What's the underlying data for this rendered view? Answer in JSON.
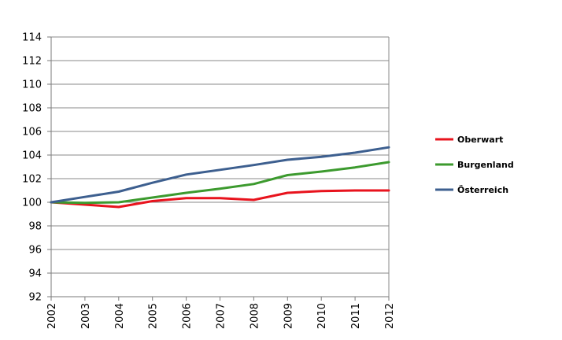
{
  "chart_data": {
    "type": "line",
    "x": [
      "2002",
      "2003",
      "2004",
      "2005",
      "2006",
      "2007",
      "2008",
      "2009",
      "2010",
      "2011",
      "2012"
    ],
    "series": [
      {
        "name": "Oberwart",
        "color": "#e8131d",
        "values": [
          100,
          99.8,
          99.6,
          100.1,
          100.35,
          100.35,
          100.2,
          100.8,
          100.95,
          101.0,
          101.0
        ]
      },
      {
        "name": "Burgenland",
        "color": "#3c9a2e",
        "values": [
          100,
          99.95,
          100.0,
          100.4,
          100.8,
          101.15,
          101.55,
          102.3,
          102.6,
          102.95,
          103.4
        ]
      },
      {
        "name": "Österreich",
        "color": "#3d5f8f",
        "values": [
          100,
          100.45,
          100.9,
          101.65,
          102.35,
          102.75,
          103.15,
          103.6,
          103.85,
          104.2,
          104.65
        ]
      }
    ],
    "yticks": [
      "92",
      "94",
      "96",
      "98",
      "100",
      "102",
      "104",
      "106",
      "108",
      "110",
      "112",
      "114"
    ],
    "ylim": [
      92,
      114
    ],
    "title": "",
    "xlabel": "",
    "ylabel": "",
    "grid": true,
    "legend_position": "right"
  }
}
